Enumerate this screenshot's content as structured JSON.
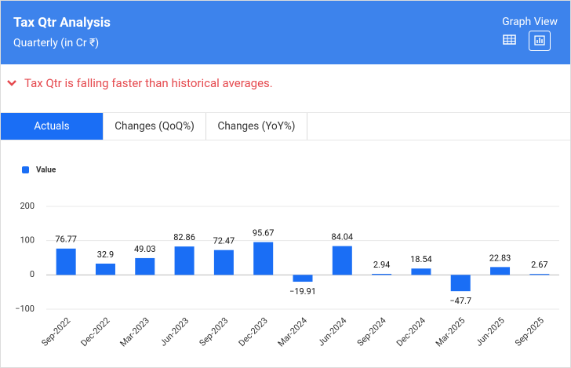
{
  "header": {
    "title": "Tax Qtr Analysis",
    "subtitle": "Quarterly (in Cr ₹)",
    "view_label": "Graph View"
  },
  "alert": "Tax Qtr is falling faster than historical averages.",
  "tabs": [
    "Actuals",
    "Changes (QoQ%)",
    "Changes (YoY%)"
  ],
  "chart_data": {
    "type": "bar",
    "categories": [
      "Sep-2022",
      "Dec-2022",
      "Mar-2023",
      "Jun-2023",
      "Sep-2023",
      "Dec-2023",
      "Mar-2024",
      "Jun-2024",
      "Sep-2024",
      "Dec-2024",
      "Mar-2025",
      "Jun-2025",
      "Sep-2025"
    ],
    "series": [
      {
        "name": "Value",
        "color": "#1a6ef5",
        "values": [
          76.77,
          32.9,
          49.03,
          82.86,
          72.47,
          95.67,
          -19.91,
          84.04,
          2.94,
          18.54,
          -47.7,
          22.83,
          2.67
        ],
        "value_labels": [
          "76.77",
          "32.9",
          "49.03",
          "82.86",
          "72.47",
          "95.67",
          "−19.91",
          "84.04",
          "2.94",
          "18.54",
          "−47.7",
          "22.83",
          "2.67"
        ]
      }
    ],
    "ylim": [
      -100,
      200
    ],
    "yticks": [
      {
        "value": -100,
        "label": "−100"
      },
      0,
      100,
      200
    ],
    "grid": true,
    "legend": "top-left"
  }
}
